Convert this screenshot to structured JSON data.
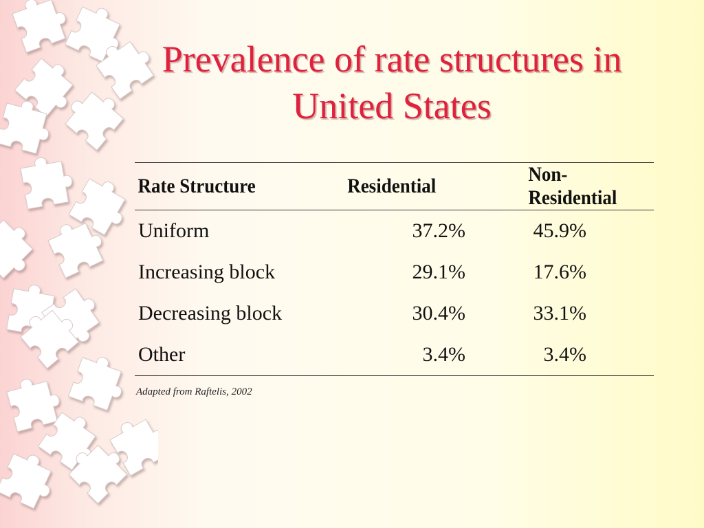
{
  "slide": {
    "title_line1": "Prevalence of rate structures in",
    "title_line2": "United States"
  },
  "table": {
    "headers": [
      "Rate Structure",
      "Residential",
      "Non-Residential"
    ],
    "rows": [
      {
        "label": "Uniform",
        "residential": "37.2%",
        "non_residential": "45.9%"
      },
      {
        "label": "Increasing block",
        "residential": "29.1%",
        "non_residential": "17.6%"
      },
      {
        "label": "Decreasing block",
        "residential": "30.4%",
        "non_residential": "33.1%"
      },
      {
        "label": "Other",
        "residential": "3.4%",
        "non_residential": "3.4%"
      }
    ]
  },
  "source_note": "Adapted from Raftelis, 2002",
  "colors": {
    "title": "#e0203c",
    "puzzle_piece": "#ffffff",
    "background_left": "#fbd3d3",
    "background_right": "#fffbc8"
  },
  "decoration": {
    "icon": "puzzle-piece-icon"
  }
}
